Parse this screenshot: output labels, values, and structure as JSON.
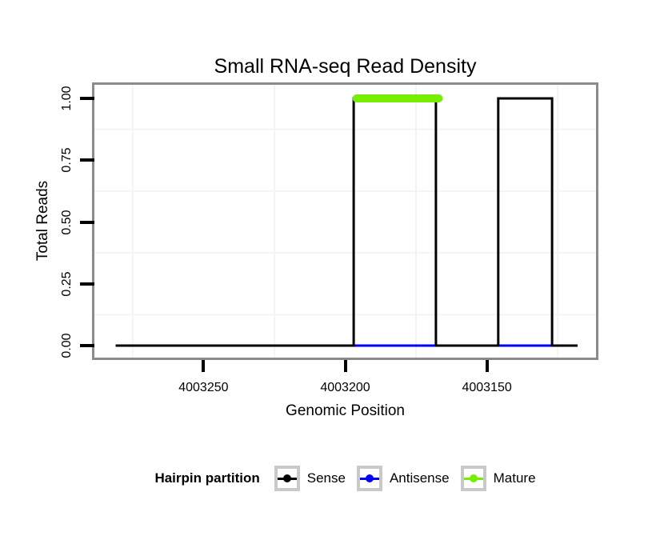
{
  "title": "Small RNA-seq Read Density",
  "axes": {
    "x": {
      "title": "Genomic Position"
    },
    "y": {
      "title": "Total Reads"
    }
  },
  "legend": {
    "title": "Hairpin partition",
    "items": [
      {
        "label": "Sense",
        "color": "#000000"
      },
      {
        "label": "Antisense",
        "color": "#0000ff"
      },
      {
        "label": "Mature",
        "color": "#76ee00"
      }
    ]
  },
  "colors": {
    "background": "#ffffff",
    "panel_border": "#8b8b8b",
    "grid_minor": "#f4f4f4",
    "legend_key_border": "#c9c9c9",
    "tick": "#000000"
  },
  "chart_data": {
    "type": "line",
    "title": "Small RNA-seq Read Density",
    "xlabel": "Genomic Position",
    "ylabel": "Total Reads",
    "x_reversed": true,
    "xlim": [
      4003288.5,
      4003111.5
    ],
    "ylim": [
      0,
      1
    ],
    "grid": "minor-only",
    "legend_position": "bottom",
    "x_ticks": [
      {
        "value": 4003250,
        "label": "4003250"
      },
      {
        "value": 4003200,
        "label": "4003200"
      },
      {
        "value": 4003150,
        "label": "4003150"
      }
    ],
    "y_ticks": [
      {
        "value": 1.0,
        "label": "1.00"
      },
      {
        "value": 0.75,
        "label": "0.75"
      },
      {
        "value": 0.5,
        "label": "0.50"
      },
      {
        "value": 0.25,
        "label": "0.25"
      },
      {
        "value": 0.0,
        "label": "0.00"
      }
    ],
    "x_minor_gridlines": [
      4003275,
      4003225,
      4003175,
      4003125
    ],
    "y_minor_gridlines": [
      0.875,
      0.625,
      0.375,
      0.125
    ],
    "series": [
      {
        "name": "Sense",
        "color": "#000000",
        "width": 3,
        "linecap": "butt",
        "z": 2,
        "points": [
          [
            4003281,
            0
          ],
          [
            4003197,
            0
          ],
          [
            4003197,
            1
          ],
          [
            4003168,
            1
          ],
          [
            4003168,
            0
          ],
          [
            4003146,
            0
          ],
          [
            4003146,
            1
          ],
          [
            4003127,
            1
          ],
          [
            4003127,
            0
          ],
          [
            4003118,
            0
          ]
        ]
      },
      {
        "name": "Antisense",
        "color": "#0000ff",
        "width": 3,
        "linecap": "butt",
        "z": 1,
        "points": [
          [
            4003281,
            0
          ],
          [
            4003118,
            0
          ]
        ]
      },
      {
        "name": "Mature",
        "color": "#76ee00",
        "width": 10,
        "linecap": "round",
        "z": 3,
        "points": [
          [
            4003196,
            1
          ],
          [
            4003167,
            1
          ]
        ]
      }
    ]
  }
}
